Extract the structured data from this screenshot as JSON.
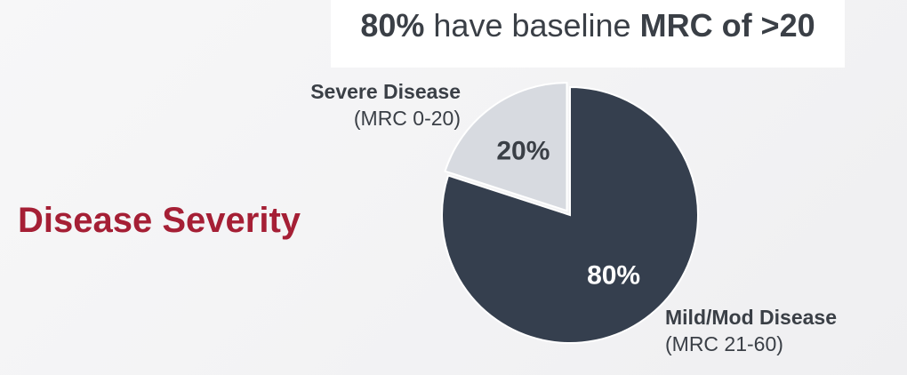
{
  "headline": {
    "strong_value": "80%",
    "middle": " have baseline ",
    "strong_tail": "MRC of >20"
  },
  "section_title": "Disease Severity",
  "chart_data": {
    "type": "pie",
    "slices": [
      {
        "name": "Mild/Mod Disease",
        "range_label": "(MRC 21-60)",
        "value": 80,
        "label": "80%",
        "color": "#353f4e",
        "text_color": "#ffffff"
      },
      {
        "name": "Severe Disease",
        "range_label": "(MRC 0-20)",
        "value": 20,
        "label": "20%",
        "color": "#d7dae0",
        "text_color": "#3a3f46",
        "exploded": true
      }
    ]
  }
}
